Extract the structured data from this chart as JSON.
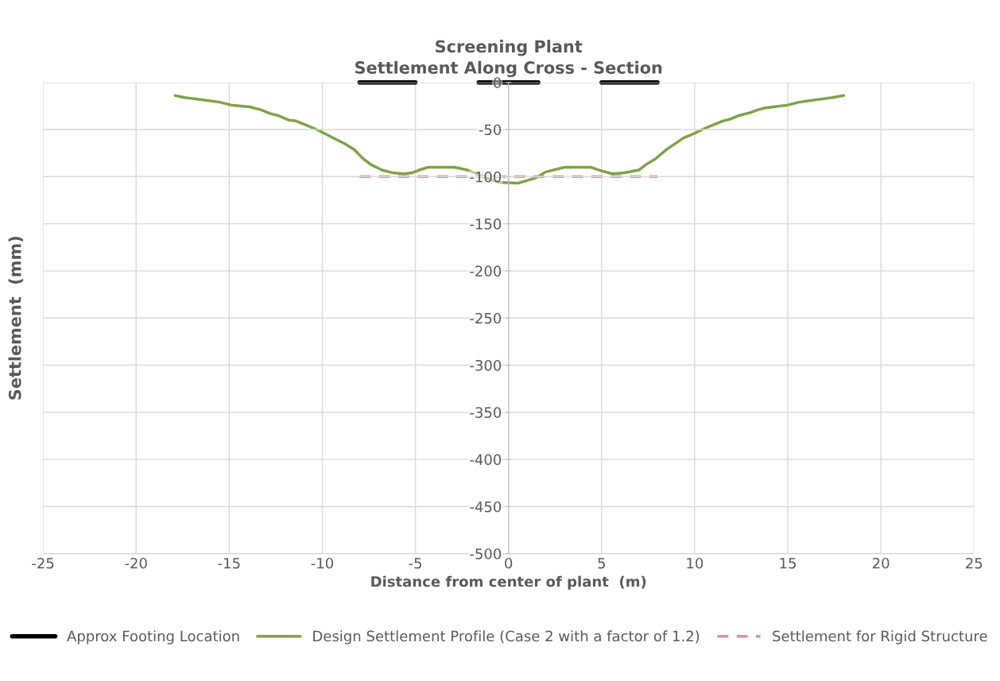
{
  "chart_data": {
    "type": "line",
    "title": "Screening Plant\nSettlement Along Cross - Section",
    "xlabel": "Distance from center of plant  (m)",
    "ylabel": "Settlement  (mm)",
    "xlim": [
      -25,
      25
    ],
    "xticks": [
      -25,
      -20,
      -15,
      -10,
      -5,
      0,
      5,
      10,
      15,
      20,
      25
    ],
    "ylim": [
      -500,
      0
    ],
    "yticks": [
      -500,
      -450,
      -400,
      -350,
      -300,
      -250,
      -200,
      -150,
      -100,
      -50,
      0
    ],
    "grid": true,
    "legend": "bottom",
    "series": [
      {
        "name": "Approx Footing Location",
        "color": "#000000",
        "line_style": "solid",
        "x": [
          -8,
          -5,
          null,
          -1.6,
          1.6,
          null,
          5,
          8
        ],
        "values": [
          0,
          0,
          null,
          0,
          0,
          null,
          0,
          0
        ]
      },
      {
        "name": "Design Settlement Profile (Case 2 with a factor of 1.2)",
        "color": "#7ea346",
        "line_style": "solid",
        "x": [
          -17.9,
          -17.4,
          -15.5,
          -14.9,
          -13.9,
          -13.3,
          -12.8,
          -12.4,
          -11.8,
          -11.4,
          -10.9,
          -10.3,
          -9.9,
          -9.4,
          -8.8,
          -8.3,
          -7.8,
          -7.4,
          -6.8,
          -6.2,
          -5.6,
          -5.2,
          -4.8,
          -4.3,
          -2.9,
          -2.2,
          -1.7,
          -1.1,
          -0.5,
          0.5,
          1.0,
          1.5,
          2.0,
          3.0,
          4.4,
          5.0,
          5.6,
          6.2,
          7.0,
          7.4,
          7.9,
          8.5,
          9.4,
          10.0,
          10.4,
          11.0,
          11.5,
          11.9,
          12.4,
          13.0,
          13.4,
          13.8,
          15.0,
          15.6,
          17.4,
          18.0
        ],
        "values": [
          -14,
          -16,
          -21,
          -24,
          -26,
          -29,
          -33,
          -35,
          -40,
          -41,
          -45,
          -50,
          -54,
          -59,
          -65,
          -71,
          -81,
          -87,
          -93,
          -96,
          -97,
          -96,
          -93,
          -90,
          -90,
          -93,
          -97,
          -102,
          -106,
          -107,
          -104,
          -101,
          -95,
          -90,
          -90,
          -94,
          -97,
          -96,
          -93,
          -87,
          -81,
          -71,
          -59,
          -54,
          -50,
          -45,
          -41,
          -39,
          -35,
          -32,
          -29,
          -27,
          -24,
          -21,
          -16,
          -14
        ]
      },
      {
        "name": "Settlement for Rigid Structure",
        "color": "#d99694",
        "line_style": "dashed",
        "x": [
          -8,
          8
        ],
        "values": [
          -100,
          -100
        ]
      }
    ]
  }
}
